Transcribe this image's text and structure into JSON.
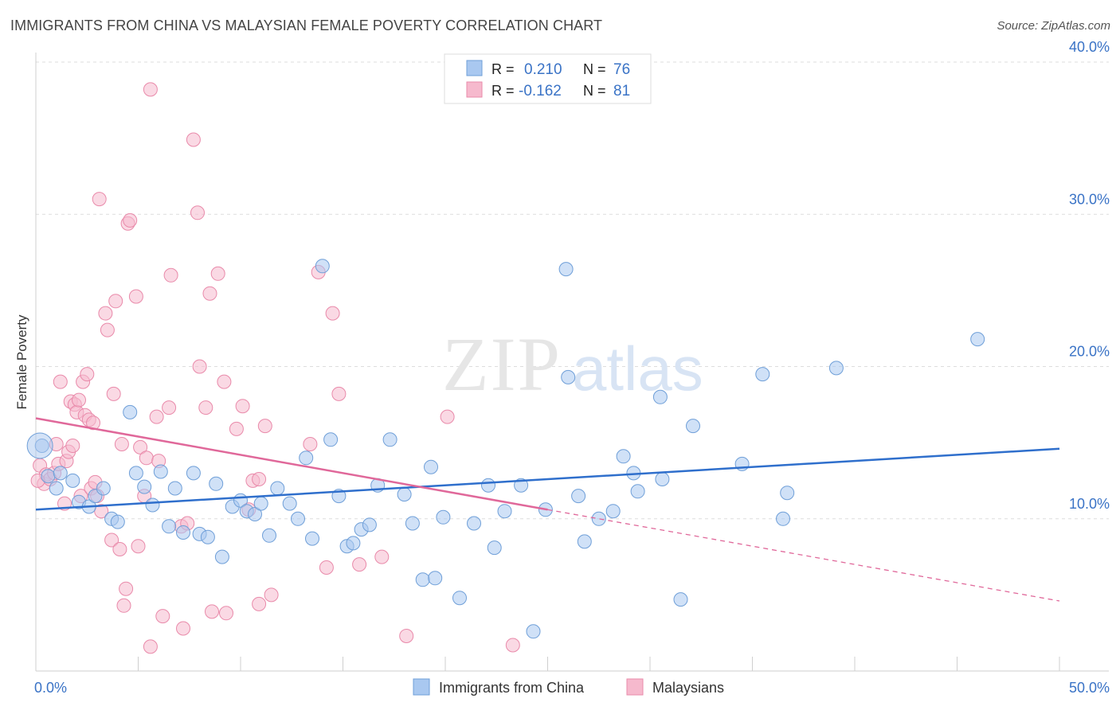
{
  "header": {
    "title": "IMMIGRANTS FROM CHINA VS MALAYSIAN FEMALE POVERTY CORRELATION CHART",
    "source": "Source: ZipAtlas.com"
  },
  "watermark": {
    "part1": "ZIP",
    "part2": "atlas"
  },
  "colors": {
    "china": "#a9c8f0",
    "china_stroke": "#6f9fd8",
    "china_line": "#2f6fcc",
    "malaysia": "#f6b9cd",
    "malaysia_stroke": "#e98aaa",
    "malaysia_line": "#e0689a",
    "tick_text": "#3a73c6",
    "grid": "#dddddd"
  },
  "legend_top": {
    "rows": [
      {
        "r_label": "R =",
        "r_value": "0.210",
        "n_label": "N =",
        "n_value": "76"
      },
      {
        "r_label": "R =",
        "r_value": "-0.162",
        "n_label": "N =",
        "n_value": "81"
      }
    ]
  },
  "legend_bottom": {
    "items": [
      "Immigrants from China",
      "Malaysians"
    ]
  },
  "chart_data": {
    "type": "scatter",
    "title": "IMMIGRANTS FROM CHINA VS MALAYSIAN FEMALE POVERTY CORRELATION CHART",
    "xlabel": "",
    "ylabel": "Female Poverty",
    "xlim": [
      0,
      50
    ],
    "ylim": [
      0,
      40
    ],
    "x_tick_labels": [
      "0.0%",
      "50.0%"
    ],
    "y_ticks": [
      10,
      20,
      30,
      40
    ],
    "y_tick_labels": [
      "10.0%",
      "20.0%",
      "30.0%",
      "40.0%"
    ],
    "grid": true,
    "legend_position": "top-center",
    "series": [
      {
        "name": "Immigrants from China",
        "r": 0.21,
        "n": 76,
        "trend": {
          "x": [
            0,
            50
          ],
          "y": [
            10.6,
            14.6
          ]
        },
        "points": [
          [
            0.3,
            14.8
          ],
          [
            0.6,
            12.8
          ],
          [
            1.0,
            12.0
          ],
          [
            1.2,
            13.0
          ],
          [
            1.8,
            12.5
          ],
          [
            2.1,
            11.1
          ],
          [
            2.6,
            10.8
          ],
          [
            2.9,
            11.5
          ],
          [
            3.3,
            12.0
          ],
          [
            3.7,
            10.0
          ],
          [
            4.0,
            9.8
          ],
          [
            4.6,
            17.0
          ],
          [
            4.9,
            13.0
          ],
          [
            5.3,
            12.1
          ],
          [
            5.7,
            10.9
          ],
          [
            6.1,
            13.1
          ],
          [
            6.5,
            9.5
          ],
          [
            6.8,
            12.0
          ],
          [
            7.2,
            9.1
          ],
          [
            7.7,
            13.0
          ],
          [
            8.0,
            9.0
          ],
          [
            8.4,
            8.8
          ],
          [
            8.8,
            12.3
          ],
          [
            9.1,
            7.5
          ],
          [
            9.6,
            10.8
          ],
          [
            10.0,
            11.2
          ],
          [
            10.3,
            10.5
          ],
          [
            10.7,
            10.3
          ],
          [
            11.0,
            11.0
          ],
          [
            11.4,
            8.9
          ],
          [
            11.8,
            12.0
          ],
          [
            12.4,
            11.0
          ],
          [
            12.8,
            10.0
          ],
          [
            13.2,
            14.0
          ],
          [
            13.5,
            8.7
          ],
          [
            14.0,
            26.6
          ],
          [
            14.4,
            15.2
          ],
          [
            14.8,
            11.5
          ],
          [
            15.2,
            8.2
          ],
          [
            15.5,
            8.4
          ],
          [
            15.9,
            9.3
          ],
          [
            16.3,
            9.6
          ],
          [
            16.7,
            12.2
          ],
          [
            17.3,
            15.2
          ],
          [
            18.0,
            11.6
          ],
          [
            18.4,
            9.7
          ],
          [
            18.9,
            6.0
          ],
          [
            19.3,
            13.4
          ],
          [
            19.5,
            6.1
          ],
          [
            19.9,
            10.1
          ],
          [
            20.7,
            4.8
          ],
          [
            21.4,
            9.7
          ],
          [
            22.1,
            12.2
          ],
          [
            22.4,
            8.1
          ],
          [
            22.9,
            10.5
          ],
          [
            23.7,
            12.2
          ],
          [
            24.3,
            2.6
          ],
          [
            24.9,
            10.6
          ],
          [
            25.9,
            26.4
          ],
          [
            26.0,
            19.3
          ],
          [
            26.5,
            11.5
          ],
          [
            26.8,
            8.5
          ],
          [
            27.5,
            10.0
          ],
          [
            28.2,
            10.5
          ],
          [
            28.7,
            14.1
          ],
          [
            29.2,
            13.0
          ],
          [
            29.4,
            11.8
          ],
          [
            30.5,
            18.0
          ],
          [
            30.6,
            12.6
          ],
          [
            31.5,
            4.7
          ],
          [
            32.1,
            16.1
          ],
          [
            34.5,
            13.6
          ],
          [
            35.5,
            19.5
          ],
          [
            36.5,
            10.0
          ],
          [
            36.7,
            11.7
          ],
          [
            39.1,
            19.9
          ],
          [
            46.0,
            21.8
          ]
        ]
      },
      {
        "name": "Malaysians",
        "r": -0.162,
        "n": 81,
        "trend": {
          "x": [
            0,
            25
          ],
          "y": [
            16.6,
            10.6
          ]
        },
        "trend_dashed": {
          "x": [
            25,
            50
          ],
          "y": [
            10.6,
            4.6
          ]
        },
        "points": [
          [
            0.2,
            13.5
          ],
          [
            0.4,
            12.3
          ],
          [
            0.5,
            12.9
          ],
          [
            0.7,
            12.6
          ],
          [
            0.9,
            13.0
          ],
          [
            1.0,
            14.9
          ],
          [
            1.1,
            13.6
          ],
          [
            1.2,
            19.0
          ],
          [
            1.4,
            11.0
          ],
          [
            1.5,
            13.8
          ],
          [
            1.6,
            14.4
          ],
          [
            1.7,
            17.7
          ],
          [
            1.8,
            14.8
          ],
          [
            1.9,
            17.5
          ],
          [
            2.0,
            17.0
          ],
          [
            2.1,
            17.8
          ],
          [
            2.2,
            11.5
          ],
          [
            2.3,
            19.0
          ],
          [
            2.4,
            16.8
          ],
          [
            2.5,
            19.5
          ],
          [
            2.6,
            16.5
          ],
          [
            2.7,
            12.0
          ],
          [
            2.8,
            16.3
          ],
          [
            2.9,
            12.4
          ],
          [
            3.0,
            11.5
          ],
          [
            3.1,
            31.0
          ],
          [
            3.2,
            10.5
          ],
          [
            3.4,
            23.5
          ],
          [
            3.5,
            22.4
          ],
          [
            3.7,
            8.6
          ],
          [
            3.8,
            18.2
          ],
          [
            3.9,
            24.3
          ],
          [
            4.1,
            8.0
          ],
          [
            4.2,
            14.9
          ],
          [
            4.3,
            4.3
          ],
          [
            4.4,
            5.4
          ],
          [
            4.5,
            29.4
          ],
          [
            4.6,
            29.6
          ],
          [
            4.9,
            24.6
          ],
          [
            5.0,
            8.2
          ],
          [
            5.1,
            14.7
          ],
          [
            5.3,
            11.5
          ],
          [
            5.4,
            14.0
          ],
          [
            5.6,
            38.2
          ],
          [
            5.6,
            1.6
          ],
          [
            5.9,
            16.7
          ],
          [
            6.0,
            13.8
          ],
          [
            6.2,
            3.6
          ],
          [
            6.5,
            17.3
          ],
          [
            6.6,
            26.0
          ],
          [
            7.1,
            9.5
          ],
          [
            7.2,
            2.8
          ],
          [
            7.4,
            9.7
          ],
          [
            7.7,
            34.9
          ],
          [
            7.9,
            30.1
          ],
          [
            8.0,
            20.0
          ],
          [
            8.3,
            17.3
          ],
          [
            8.5,
            24.8
          ],
          [
            8.6,
            3.9
          ],
          [
            8.9,
            26.1
          ],
          [
            9.2,
            19.0
          ],
          [
            9.3,
            3.8
          ],
          [
            9.8,
            15.9
          ],
          [
            10.1,
            17.4
          ],
          [
            10.4,
            10.6
          ],
          [
            10.6,
            12.5
          ],
          [
            10.9,
            4.4
          ],
          [
            10.9,
            12.6
          ],
          [
            11.2,
            16.1
          ],
          [
            11.5,
            5.0
          ],
          [
            13.4,
            14.9
          ],
          [
            13.8,
            26.2
          ],
          [
            14.2,
            6.8
          ],
          [
            14.5,
            23.5
          ],
          [
            14.8,
            18.2
          ],
          [
            15.8,
            7.0
          ],
          [
            16.9,
            7.5
          ],
          [
            18.1,
            2.3
          ],
          [
            20.1,
            16.7
          ],
          [
            23.3,
            1.7
          ],
          [
            0.1,
            12.5
          ]
        ]
      }
    ]
  }
}
